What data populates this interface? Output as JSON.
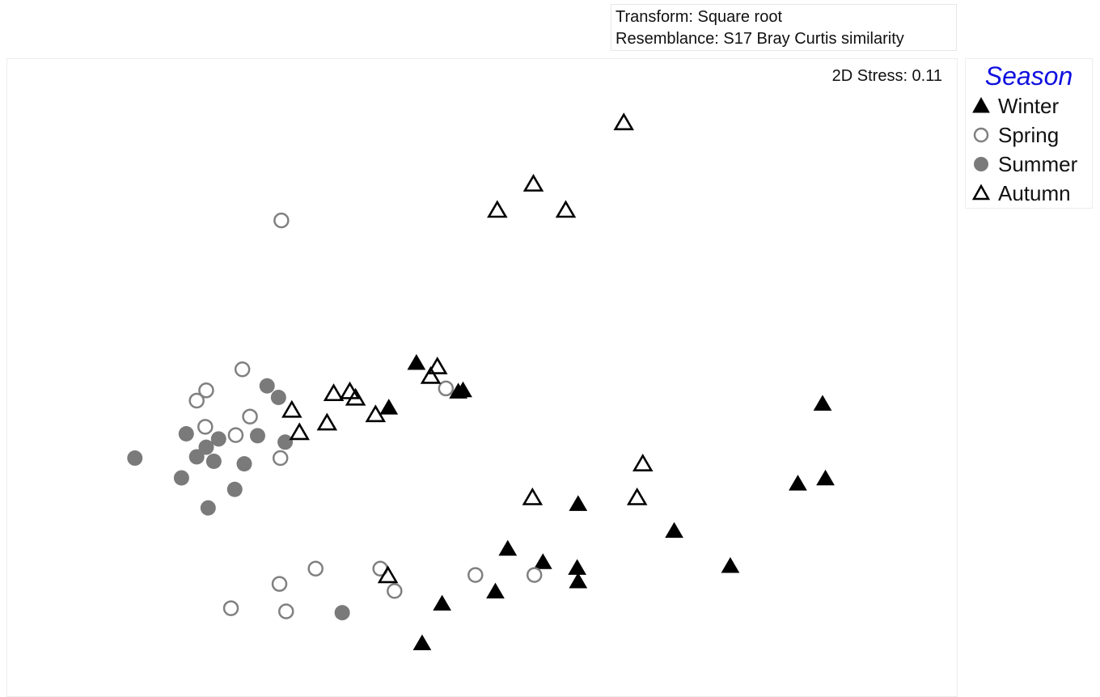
{
  "header": {
    "transform": "Transform: Square root",
    "resemblance": "Resemblance: S17 Bray Curtis similarity"
  },
  "stress_label": "2D Stress: 0.11",
  "legend": {
    "title": "Season",
    "title_color": "#1010e0",
    "items": [
      {
        "label": "Winter",
        "marker": "filled-triangle",
        "color": "#000000"
      },
      {
        "label": "Spring",
        "marker": "open-circle",
        "color": "#808080"
      },
      {
        "label": "Summer",
        "marker": "filled-circle",
        "color": "#7a7a7a"
      },
      {
        "label": "Autumn",
        "marker": "open-triangle",
        "color": "#000000"
      }
    ]
  },
  "chart_data": {
    "type": "scatter",
    "title": "",
    "xlabel": "",
    "ylabel": "",
    "grid": false,
    "axes_shown": false,
    "legend_position": "right",
    "xlim": [
      0,
      100
    ],
    "ylim": [
      0,
      100
    ],
    "note": "MDS ordination; arbitrary units (no axis scale printed)",
    "series": [
      {
        "name": "Winter",
        "x": [
          43.1,
          40.2,
          47.5,
          48.0,
          60.1,
          52.7,
          56.4,
          60.0,
          60.1,
          51.4,
          45.8,
          43.7,
          70.2,
          76.1,
          83.2,
          86.1,
          85.8
        ],
        "y": [
          52.2,
          45.2,
          47.7,
          47.9,
          30.1,
          23.1,
          21.0,
          20.1,
          18.0,
          16.4,
          14.5,
          8.3,
          25.9,
          20.4,
          33.3,
          34.1,
          45.8
        ]
      },
      {
        "name": "Spring",
        "x": [
          28.9,
          24.8,
          21.0,
          20.0,
          20.9,
          25.6,
          24.1,
          28.8,
          46.2,
          32.5,
          39.3,
          40.8,
          28.7,
          23.6,
          29.4,
          49.3,
          55.5
        ],
        "y": [
          74.6,
          51.3,
          48.0,
          46.4,
          42.3,
          43.9,
          41.0,
          37.4,
          48.3,
          20.1,
          20.1,
          16.6,
          17.7,
          13.9,
          13.4,
          19.1,
          19.1
        ]
      },
      {
        "name": "Summer",
        "x": [
          27.4,
          28.6,
          18.9,
          22.3,
          26.4,
          29.3,
          21.0,
          20.0,
          21.8,
          25.0,
          13.5,
          18.4,
          24.0,
          21.2,
          35.3
        ],
        "y": [
          48.7,
          46.9,
          41.2,
          40.4,
          40.9,
          39.9,
          39.1,
          37.6,
          36.9,
          36.5,
          37.4,
          34.3,
          32.5,
          29.6,
          13.2
        ]
      },
      {
        "name": "Autumn",
        "x": [
          64.9,
          55.4,
          51.6,
          58.8,
          45.3,
          44.6,
          34.4,
          30.0,
          30.8,
          36.1,
          36.7,
          38.8,
          33.7,
          55.3,
          66.9,
          66.3,
          40.1
        ],
        "y": [
          89.8,
          80.2,
          76.1,
          76.1,
          51.6,
          50.1,
          47.4,
          44.8,
          41.3,
          47.7,
          46.7,
          44.1,
          42.8,
          31.1,
          36.4,
          31.1,
          18.9
        ]
      }
    ]
  }
}
